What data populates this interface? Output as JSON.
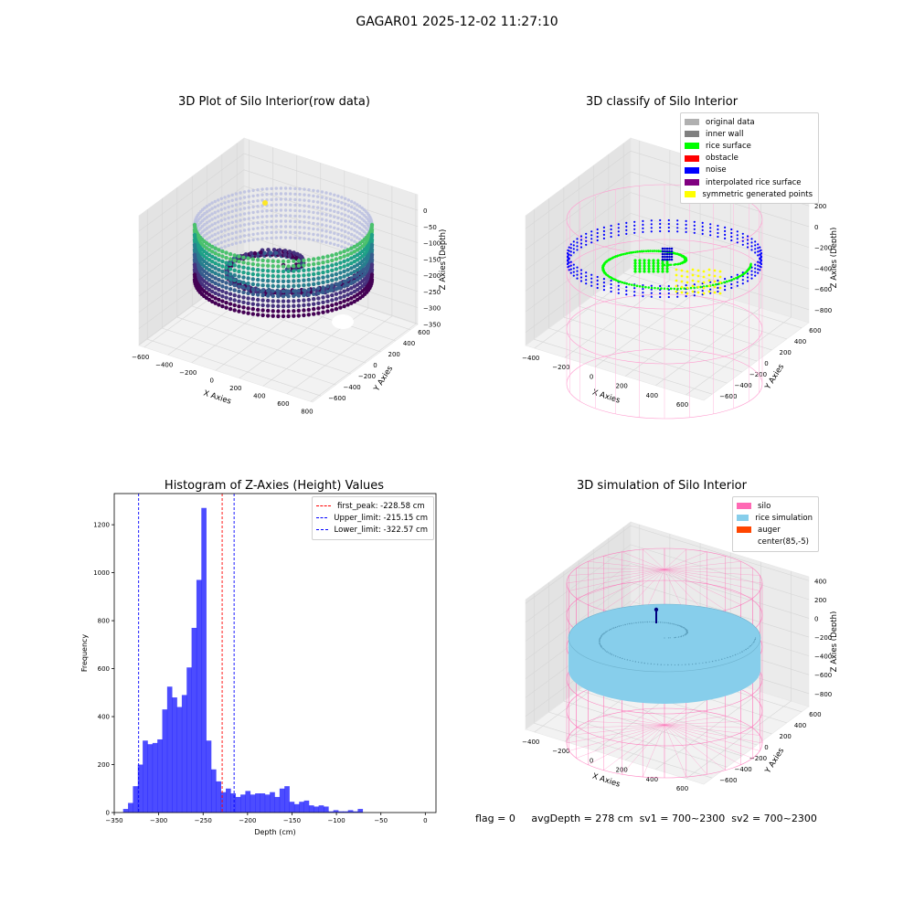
{
  "figure": {
    "title": "GAGAR01 2025-12-02 11:27:10",
    "footer": {
      "flag": "flag = 0",
      "avg_depth": "avgDepth = 278 cm",
      "sv1": "sv1 = 700~2300",
      "sv2": "sv2 = 700~2300"
    }
  },
  "chart_data": [
    {
      "type": "scatter",
      "title": "3D Plot of Silo Interior(row data)",
      "xlabel": "X Axies",
      "ylabel": "Y Axies",
      "zlabel": "Z Axies (Depth)",
      "x_ticks": [
        -600,
        -400,
        -200,
        0,
        200,
        400,
        600,
        800
      ],
      "y_ticks": [
        -600,
        -400,
        -200,
        0,
        200,
        400,
        600
      ],
      "z_ticks": [
        0,
        -50,
        -100,
        -150,
        -200,
        -250,
        -300,
        -350
      ],
      "colormap": "viridis",
      "description_points": {
        "wall_radius": 620,
        "z_range": [
          -350,
          -20
        ]
      }
    },
    {
      "type": "scatter",
      "title": "3D classify of Silo Interior",
      "xlabel": "X Axies",
      "ylabel": "Y Axies",
      "zlabel": "Z Axies (Depth)",
      "x_ticks": [
        -400,
        -200,
        0,
        200,
        400,
        600
      ],
      "y_ticks": [
        -600,
        -400,
        -200,
        0,
        200,
        400,
        600
      ],
      "z_ticks": [
        200,
        0,
        -200,
        -400,
        -600,
        -800
      ],
      "z_top_tick_partial": "00",
      "legend": [
        {
          "label": "original data",
          "color": "#b0b0b0"
        },
        {
          "label": "inner wall",
          "color": "#808080"
        },
        {
          "label": "rice surface",
          "color": "#00ff00"
        },
        {
          "label": "obstacle",
          "color": "#ff0000"
        },
        {
          "label": "noise",
          "color": "#0000ff"
        },
        {
          "label": "interpolated rice surface",
          "color": "#800080"
        },
        {
          "label": "symmetric generated points",
          "color": "#ffff00"
        }
      ]
    },
    {
      "type": "bar",
      "title": "Histogram of Z-Axies (Height) Values",
      "xlabel": "Depth (cm)",
      "ylabel": "Frequency",
      "xlim": [
        -350,
        12
      ],
      "ylim": [
        0,
        1330
      ],
      "x_ticks": [
        -350,
        -300,
        -250,
        -200,
        -150,
        -100,
        -50,
        0
      ],
      "y_ticks": [
        0,
        200,
        400,
        600,
        800,
        1000,
        1200
      ],
      "bin_start": -340,
      "bin_width": 5.5,
      "values": [
        15,
        40,
        110,
        200,
        300,
        285,
        290,
        305,
        430,
        525,
        480,
        440,
        490,
        605,
        770,
        970,
        1270,
        300,
        180,
        130,
        85,
        100,
        80,
        65,
        75,
        90,
        75,
        80,
        80,
        75,
        85,
        65,
        100,
        110,
        45,
        35,
        45,
        50,
        30,
        25,
        30,
        25,
        5,
        10,
        5,
        5,
        10,
        5,
        15
      ],
      "bar_color": "#0000ff",
      "vlines": [
        {
          "label": "first_peak: -228.58 cm",
          "x": -228.58,
          "color": "#ff0000"
        },
        {
          "label": "Upper_limit: -215.15 cm",
          "x": -215.15,
          "color": "#0000ff"
        },
        {
          "label": "Lower_limit: -322.57 cm",
          "x": -322.57,
          "color": "#0000ff"
        }
      ]
    },
    {
      "type": "scatter",
      "title": "3D simulation of Silo Interior",
      "xlabel": "X Axies",
      "ylabel": "Y Axies",
      "zlabel": "Z Axies (Depth)",
      "x_ticks": [
        -400,
        -200,
        0,
        200,
        400,
        600
      ],
      "y_ticks": [
        -600,
        -400,
        -200,
        0,
        200,
        400,
        600
      ],
      "z_ticks": [
        400,
        200,
        0,
        -200,
        -400,
        -600,
        -800
      ],
      "legend": [
        {
          "label": "silo",
          "color": "#ff69b4"
        },
        {
          "label": "rice simulation",
          "color": "#87ceeb"
        },
        {
          "label": "auger",
          "color": "#ff4500"
        },
        {
          "label": "center(85,-5)",
          "color": ""
        }
      ]
    }
  ]
}
